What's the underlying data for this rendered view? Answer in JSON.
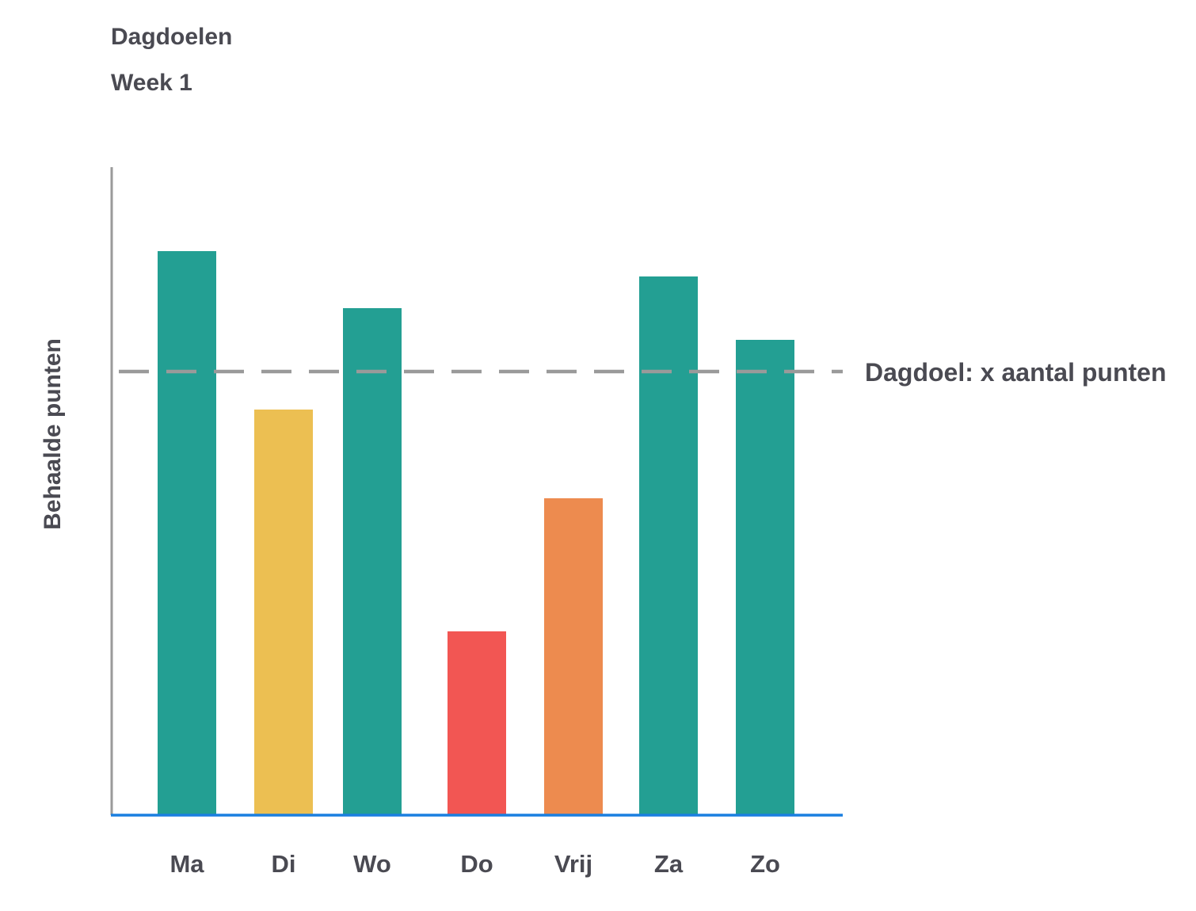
{
  "chart_data": {
    "type": "bar",
    "title": "Dagdoelen",
    "subtitle": "Week 1",
    "xlabel": "",
    "ylabel": "Behaalde punten",
    "categories": [
      "Ma",
      "Di",
      "Wo",
      "Do",
      "Vrij",
      "Za",
      "Zo"
    ],
    "values": [
      8.9,
      6.4,
      8.0,
      2.9,
      5.0,
      8.5,
      7.5
    ],
    "bar_colors": [
      "#239f93",
      "#ecbf52",
      "#239f93",
      "#f25653",
      "#ed8b4f",
      "#239f93",
      "#239f93"
    ],
    "ylim": [
      0,
      10.2
    ],
    "reference_line": {
      "value": 7.0,
      "label": "Dagdoel: x aantal punten",
      "style": "dashed",
      "color": "#9a9a9a"
    },
    "axis_colors": {
      "x_axis": "#1a7fe0",
      "y_axis": "#9a9a9a"
    },
    "grid": false,
    "legend": "none"
  }
}
